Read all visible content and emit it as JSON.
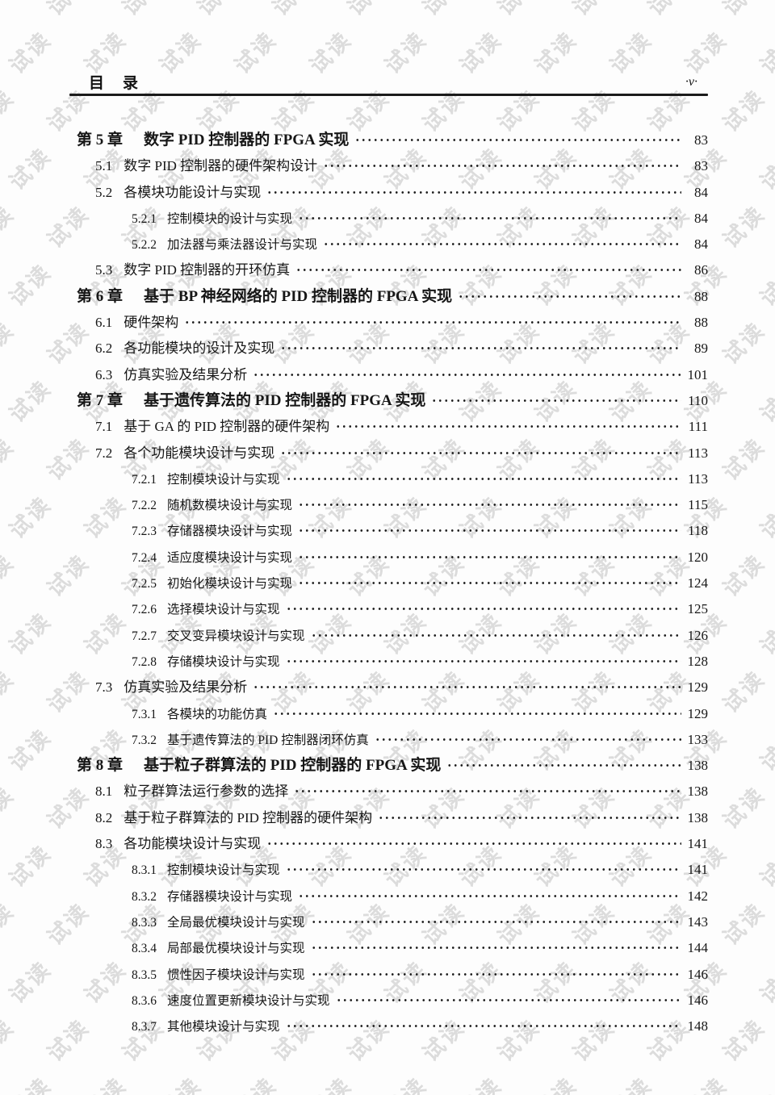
{
  "header": {
    "title": "目　录",
    "page_label": "·v·"
  },
  "watermark": {
    "text": "试读"
  },
  "toc": {
    "entries": [
      {
        "level": 1,
        "num": "第 5 章",
        "title": "数字 PID 控制器的 FPGA 实现",
        "page": "83"
      },
      {
        "level": 2,
        "num": "5.1",
        "title": "数字 PID 控制器的硬件架构设计",
        "page": "83"
      },
      {
        "level": 2,
        "num": "5.2",
        "title": "各模块功能设计与实现",
        "page": "84"
      },
      {
        "level": 3,
        "num": "5.2.1",
        "title": "控制模块的设计与实现",
        "page": "84"
      },
      {
        "level": 3,
        "num": "5.2.2",
        "title": "加法器与乘法器设计与实现",
        "page": "84"
      },
      {
        "level": 2,
        "num": "5.3",
        "title": "数字 PID 控制器的开环仿真",
        "page": "86"
      },
      {
        "level": 1,
        "num": "第 6 章",
        "title": "基于 BP 神经网络的 PID 控制器的 FPGA 实现",
        "page": "88"
      },
      {
        "level": 2,
        "num": "6.1",
        "title": "硬件架构",
        "page": "88"
      },
      {
        "level": 2,
        "num": "6.2",
        "title": "各功能模块的设计及实现",
        "page": "89"
      },
      {
        "level": 2,
        "num": "6.3",
        "title": "仿真实验及结果分析",
        "page": "101"
      },
      {
        "level": 1,
        "num": "第 7 章",
        "title": "基于遗传算法的 PID 控制器的 FPGA 实现",
        "page": "110"
      },
      {
        "level": 2,
        "num": "7.1",
        "title": "基于 GA 的 PID 控制器的硬件架构",
        "page": "111"
      },
      {
        "level": 2,
        "num": "7.2",
        "title": "各个功能模块设计与实现",
        "page": "113"
      },
      {
        "level": 3,
        "num": "7.2.1",
        "title": "控制模块设计与实现",
        "page": "113"
      },
      {
        "level": 3,
        "num": "7.2.2",
        "title": "随机数模块设计与实现",
        "page": "115"
      },
      {
        "level": 3,
        "num": "7.2.3",
        "title": "存储器模块设计与实现",
        "page": "118"
      },
      {
        "level": 3,
        "num": "7.2.4",
        "title": "适应度模块设计与实现",
        "page": "120"
      },
      {
        "level": 3,
        "num": "7.2.5",
        "title": "初始化模块设计与实现",
        "page": "124"
      },
      {
        "level": 3,
        "num": "7.2.6",
        "title": "选择模块设计与实现",
        "page": "125"
      },
      {
        "level": 3,
        "num": "7.2.7",
        "title": "交叉变异模块设计与实现",
        "page": "126"
      },
      {
        "level": 3,
        "num": "7.2.8",
        "title": "存储模块设计与实现",
        "page": "128"
      },
      {
        "level": 2,
        "num": "7.3",
        "title": "仿真实验及结果分析",
        "page": "129"
      },
      {
        "level": 3,
        "num": "7.3.1",
        "title": "各模块的功能仿真",
        "page": "129"
      },
      {
        "level": 3,
        "num": "7.3.2",
        "title": "基于遗传算法的 PID 控制器闭环仿真",
        "page": "133"
      },
      {
        "level": 1,
        "num": "第 8 章",
        "title": "基于粒子群算法的 PID 控制器的 FPGA 实现",
        "page": "138"
      },
      {
        "level": 2,
        "num": "8.1",
        "title": "粒子群算法运行参数的选择",
        "page": "138"
      },
      {
        "level": 2,
        "num": "8.2",
        "title": "基于粒子群算法的 PID 控制器的硬件架构",
        "page": "138"
      },
      {
        "level": 2,
        "num": "8.3",
        "title": "各功能模块设计与实现",
        "page": "141"
      },
      {
        "level": 3,
        "num": "8.3.1",
        "title": "控制模块设计与实现",
        "page": "141"
      },
      {
        "level": 3,
        "num": "8.3.2",
        "title": "存储器模块设计与实现",
        "page": "142"
      },
      {
        "level": 3,
        "num": "8.3.3",
        "title": "全局最优模块设计与实现",
        "page": "143"
      },
      {
        "level": 3,
        "num": "8.3.4",
        "title": "局部最优模块设计与实现",
        "page": "144"
      },
      {
        "level": 3,
        "num": "8.3.5",
        "title": "惯性因子模块设计与实现",
        "page": "146"
      },
      {
        "level": 3,
        "num": "8.3.6",
        "title": "速度位置更新模块设计与实现",
        "page": "146"
      },
      {
        "level": 3,
        "num": "8.3.7",
        "title": "其他模块设计与实现",
        "page": "148"
      }
    ]
  }
}
